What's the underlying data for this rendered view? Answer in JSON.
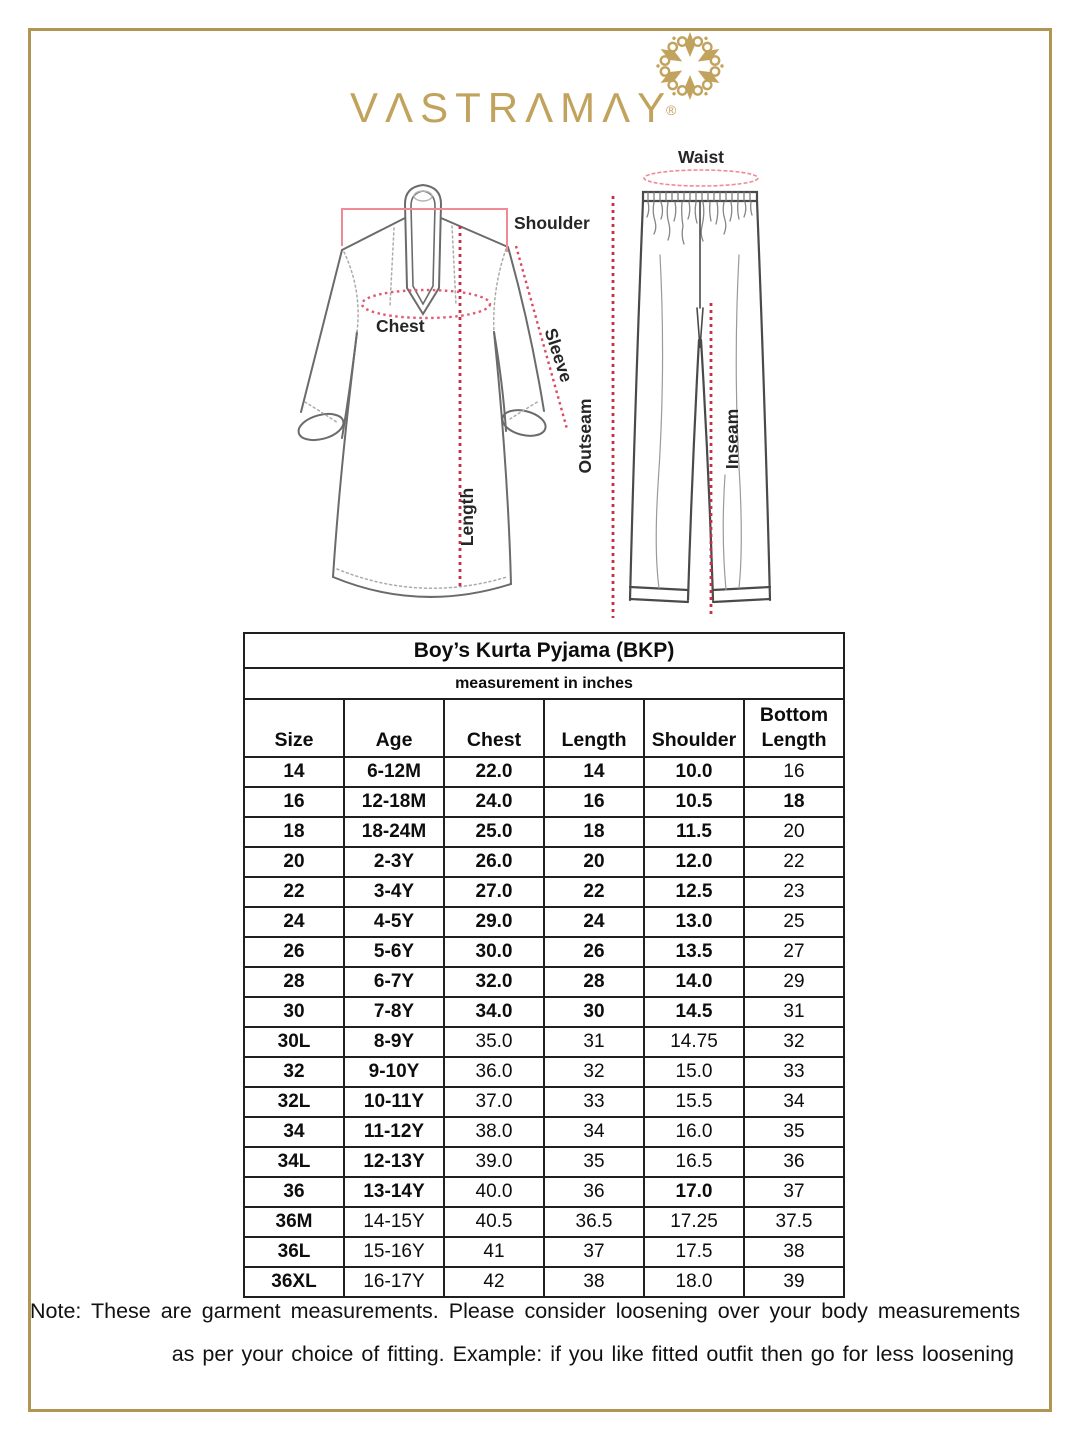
{
  "colors": {
    "brand_gold": "#c2a35e",
    "frame_gold": "#b09655",
    "measure_red": "#c62f45",
    "measure_pink": "#f08a96",
    "sketch_gray": "#6b6b6b"
  },
  "brand": {
    "wordmark": "VΛSTRΛMΛY",
    "registered": "®",
    "ornament_icon": "mandala-star"
  },
  "diagram": {
    "kurta": {
      "labels": {
        "shoulder": "Shoulder",
        "chest": "Chest",
        "length": "Length",
        "sleeve": "Sleeve"
      }
    },
    "pyjama": {
      "labels": {
        "waist": "Waist",
        "outseam": "Outseam",
        "inseam": "Inseam"
      }
    }
  },
  "table": {
    "title": "Boy’s Kurta Pyjama (BKP)",
    "subtitle": "measurement in inches",
    "columns": [
      "Size",
      "Age",
      "Chest",
      "Length",
      "Shoulder",
      "Bottom Length"
    ],
    "rows": [
      [
        "14",
        "6-12M",
        "22.0",
        "14",
        "10.0",
        "16"
      ],
      [
        "16",
        "12-18M",
        "24.0",
        "16",
        "10.5",
        "18"
      ],
      [
        "18",
        "18-24M",
        "25.0",
        "18",
        "11.5",
        "20"
      ],
      [
        "20",
        "2-3Y",
        "26.0",
        "20",
        "12.0",
        "22"
      ],
      [
        "22",
        "3-4Y",
        "27.0",
        "22",
        "12.5",
        "23"
      ],
      [
        "24",
        "4-5Y",
        "29.0",
        "24",
        "13.0",
        "25"
      ],
      [
        "26",
        "5-6Y",
        "30.0",
        "26",
        "13.5",
        "27"
      ],
      [
        "28",
        "6-7Y",
        "32.0",
        "28",
        "14.0",
        "29"
      ],
      [
        "30",
        "7-8Y",
        "34.0",
        "30",
        "14.5",
        "31"
      ],
      [
        "30L",
        "8-9Y",
        "35.0",
        "31",
        "14.75",
        "32"
      ],
      [
        "32",
        "9-10Y",
        "36.0",
        "32",
        "15.0",
        "33"
      ],
      [
        "32L",
        "10-11Y",
        "37.0",
        "33",
        "15.5",
        "34"
      ],
      [
        "34",
        "11-12Y",
        "38.0",
        "34",
        "16.0",
        "35"
      ],
      [
        "34L",
        "12-13Y",
        "39.0",
        "35",
        "16.5",
        "36"
      ],
      [
        "36",
        "13-14Y",
        "40.0",
        "36",
        "17.0",
        "37"
      ],
      [
        "36M",
        "14-15Y",
        "40.5",
        "36.5",
        "17.25",
        "37.5"
      ],
      [
        "36L",
        "15-16Y",
        "41",
        "37",
        "17.5",
        "38"
      ],
      [
        "36XL",
        "16-17Y",
        "42",
        "38",
        "18.0",
        "39"
      ]
    ],
    "bold_cells": [
      [
        0,
        1,
        2,
        3,
        4
      ],
      [
        0,
        1,
        2,
        3,
        4,
        5
      ],
      [
        0,
        1,
        2,
        3,
        4
      ],
      [
        0,
        1,
        2,
        3,
        4
      ],
      [
        0,
        1,
        2,
        3,
        4
      ],
      [
        0,
        1,
        2,
        3,
        4
      ],
      [
        0,
        1,
        2,
        3,
        4
      ],
      [
        0,
        1,
        2,
        3,
        4
      ],
      [
        0,
        1,
        2,
        3,
        4
      ],
      [
        0,
        1
      ],
      [
        0,
        1
      ],
      [
        0,
        1
      ],
      [
        0,
        1
      ],
      [
        0,
        1
      ],
      [
        0,
        1,
        4
      ],
      [
        0
      ],
      [
        0
      ],
      [
        0
      ]
    ]
  },
  "note": {
    "line1": "Note: These are garment measurements. Please consider loosening over your body measurements",
    "line2": "as per your choice of fitting. Example: if you like fitted outfit then go for less loosening"
  }
}
